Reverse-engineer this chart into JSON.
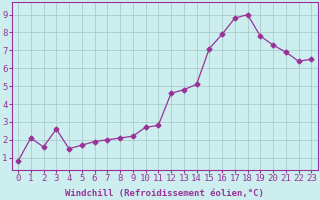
{
  "x": [
    0,
    1,
    2,
    3,
    4,
    5,
    6,
    7,
    8,
    9,
    10,
    11,
    12,
    13,
    14,
    15,
    16,
    17,
    18,
    19,
    20,
    21,
    22,
    23
  ],
  "y": [
    0.8,
    2.1,
    1.6,
    2.6,
    1.5,
    1.7,
    1.9,
    2.0,
    2.1,
    2.2,
    2.7,
    2.8,
    4.6,
    4.8,
    5.1,
    7.1,
    7.9,
    8.8,
    9.0,
    7.8,
    7.3,
    6.9,
    6.4,
    6.5
  ],
  "line_color": "#993399",
  "marker": "D",
  "marker_size": 2.5,
  "bg_color": "#cceeee",
  "grid_color": "#aacccc",
  "xlabel": "Windchill (Refroidissement éolien,°C)",
  "xlabel_fontsize": 6.5,
  "ylabel_ticks": [
    1,
    2,
    3,
    4,
    5,
    6,
    7,
    8,
    9
  ],
  "xlim": [
    -0.5,
    23.5
  ],
  "ylim": [
    0.3,
    9.7
  ],
  "tick_fontsize": 6.5,
  "label_color": "#993399"
}
